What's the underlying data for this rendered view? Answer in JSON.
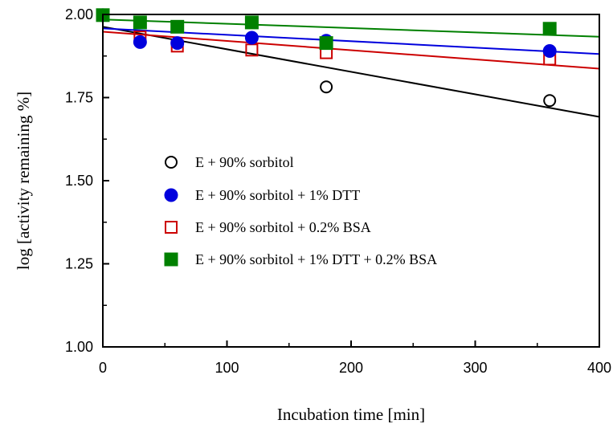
{
  "chart_data": {
    "type": "scatter",
    "title": "",
    "xlabel": "Incubation time [min]",
    "ylabel": "log [activity remaining %]",
    "xlim": [
      0,
      400
    ],
    "ylim": [
      1.0,
      2.0
    ],
    "x_ticks": [
      0,
      100,
      200,
      300,
      400
    ],
    "x_tick_labels": [
      "0",
      "100",
      "200",
      "300",
      "400"
    ],
    "y_ticks": [
      1.0,
      1.25,
      1.5,
      1.75,
      2.0
    ],
    "y_tick_labels": [
      "1.00",
      "1.25",
      "1.50",
      "1.75",
      "2.00"
    ],
    "grid": false,
    "legend_position": "center-left",
    "series": [
      {
        "name": "E + 90% sorbitol",
        "marker": "circle-open",
        "color": "#000000",
        "x": [
          0,
          30,
          60,
          120,
          180,
          360
        ],
        "y": [
          1.998,
          1.917,
          1.914,
          1.93,
          1.782,
          1.741
        ],
        "fit": [
          [
            0,
            1.963
          ],
          [
            400,
            1.692
          ]
        ]
      },
      {
        "name": "E + 90% sorbitol + 1% DTT",
        "marker": "circle-filled",
        "color": "#0000dd",
        "x": [
          0,
          30,
          60,
          120,
          180,
          360
        ],
        "y": [
          1.998,
          1.917,
          1.914,
          1.93,
          1.921,
          1.89
        ],
        "fit": [
          [
            0,
            1.958
          ],
          [
            400,
            1.881
          ]
        ]
      },
      {
        "name": "E + 90% sorbitol + 0.2% BSA",
        "marker": "square-open",
        "color": "#cc0000",
        "x": [
          0,
          30,
          60,
          120,
          180,
          360
        ],
        "y": [
          1.998,
          1.932,
          1.905,
          1.893,
          1.885,
          1.866
        ],
        "fit": [
          [
            0,
            1.948
          ],
          [
            400,
            1.837
          ]
        ]
      },
      {
        "name": "E + 90% sorbitol + 1% DTT + 0.2% BSA",
        "marker": "square-filled",
        "color": "#008000",
        "x": [
          0,
          30,
          60,
          120,
          180,
          360
        ],
        "y": [
          1.998,
          1.976,
          1.963,
          1.976,
          1.914,
          1.957
        ],
        "fit": [
          [
            0,
            1.985
          ],
          [
            400,
            1.933
          ]
        ]
      }
    ]
  }
}
